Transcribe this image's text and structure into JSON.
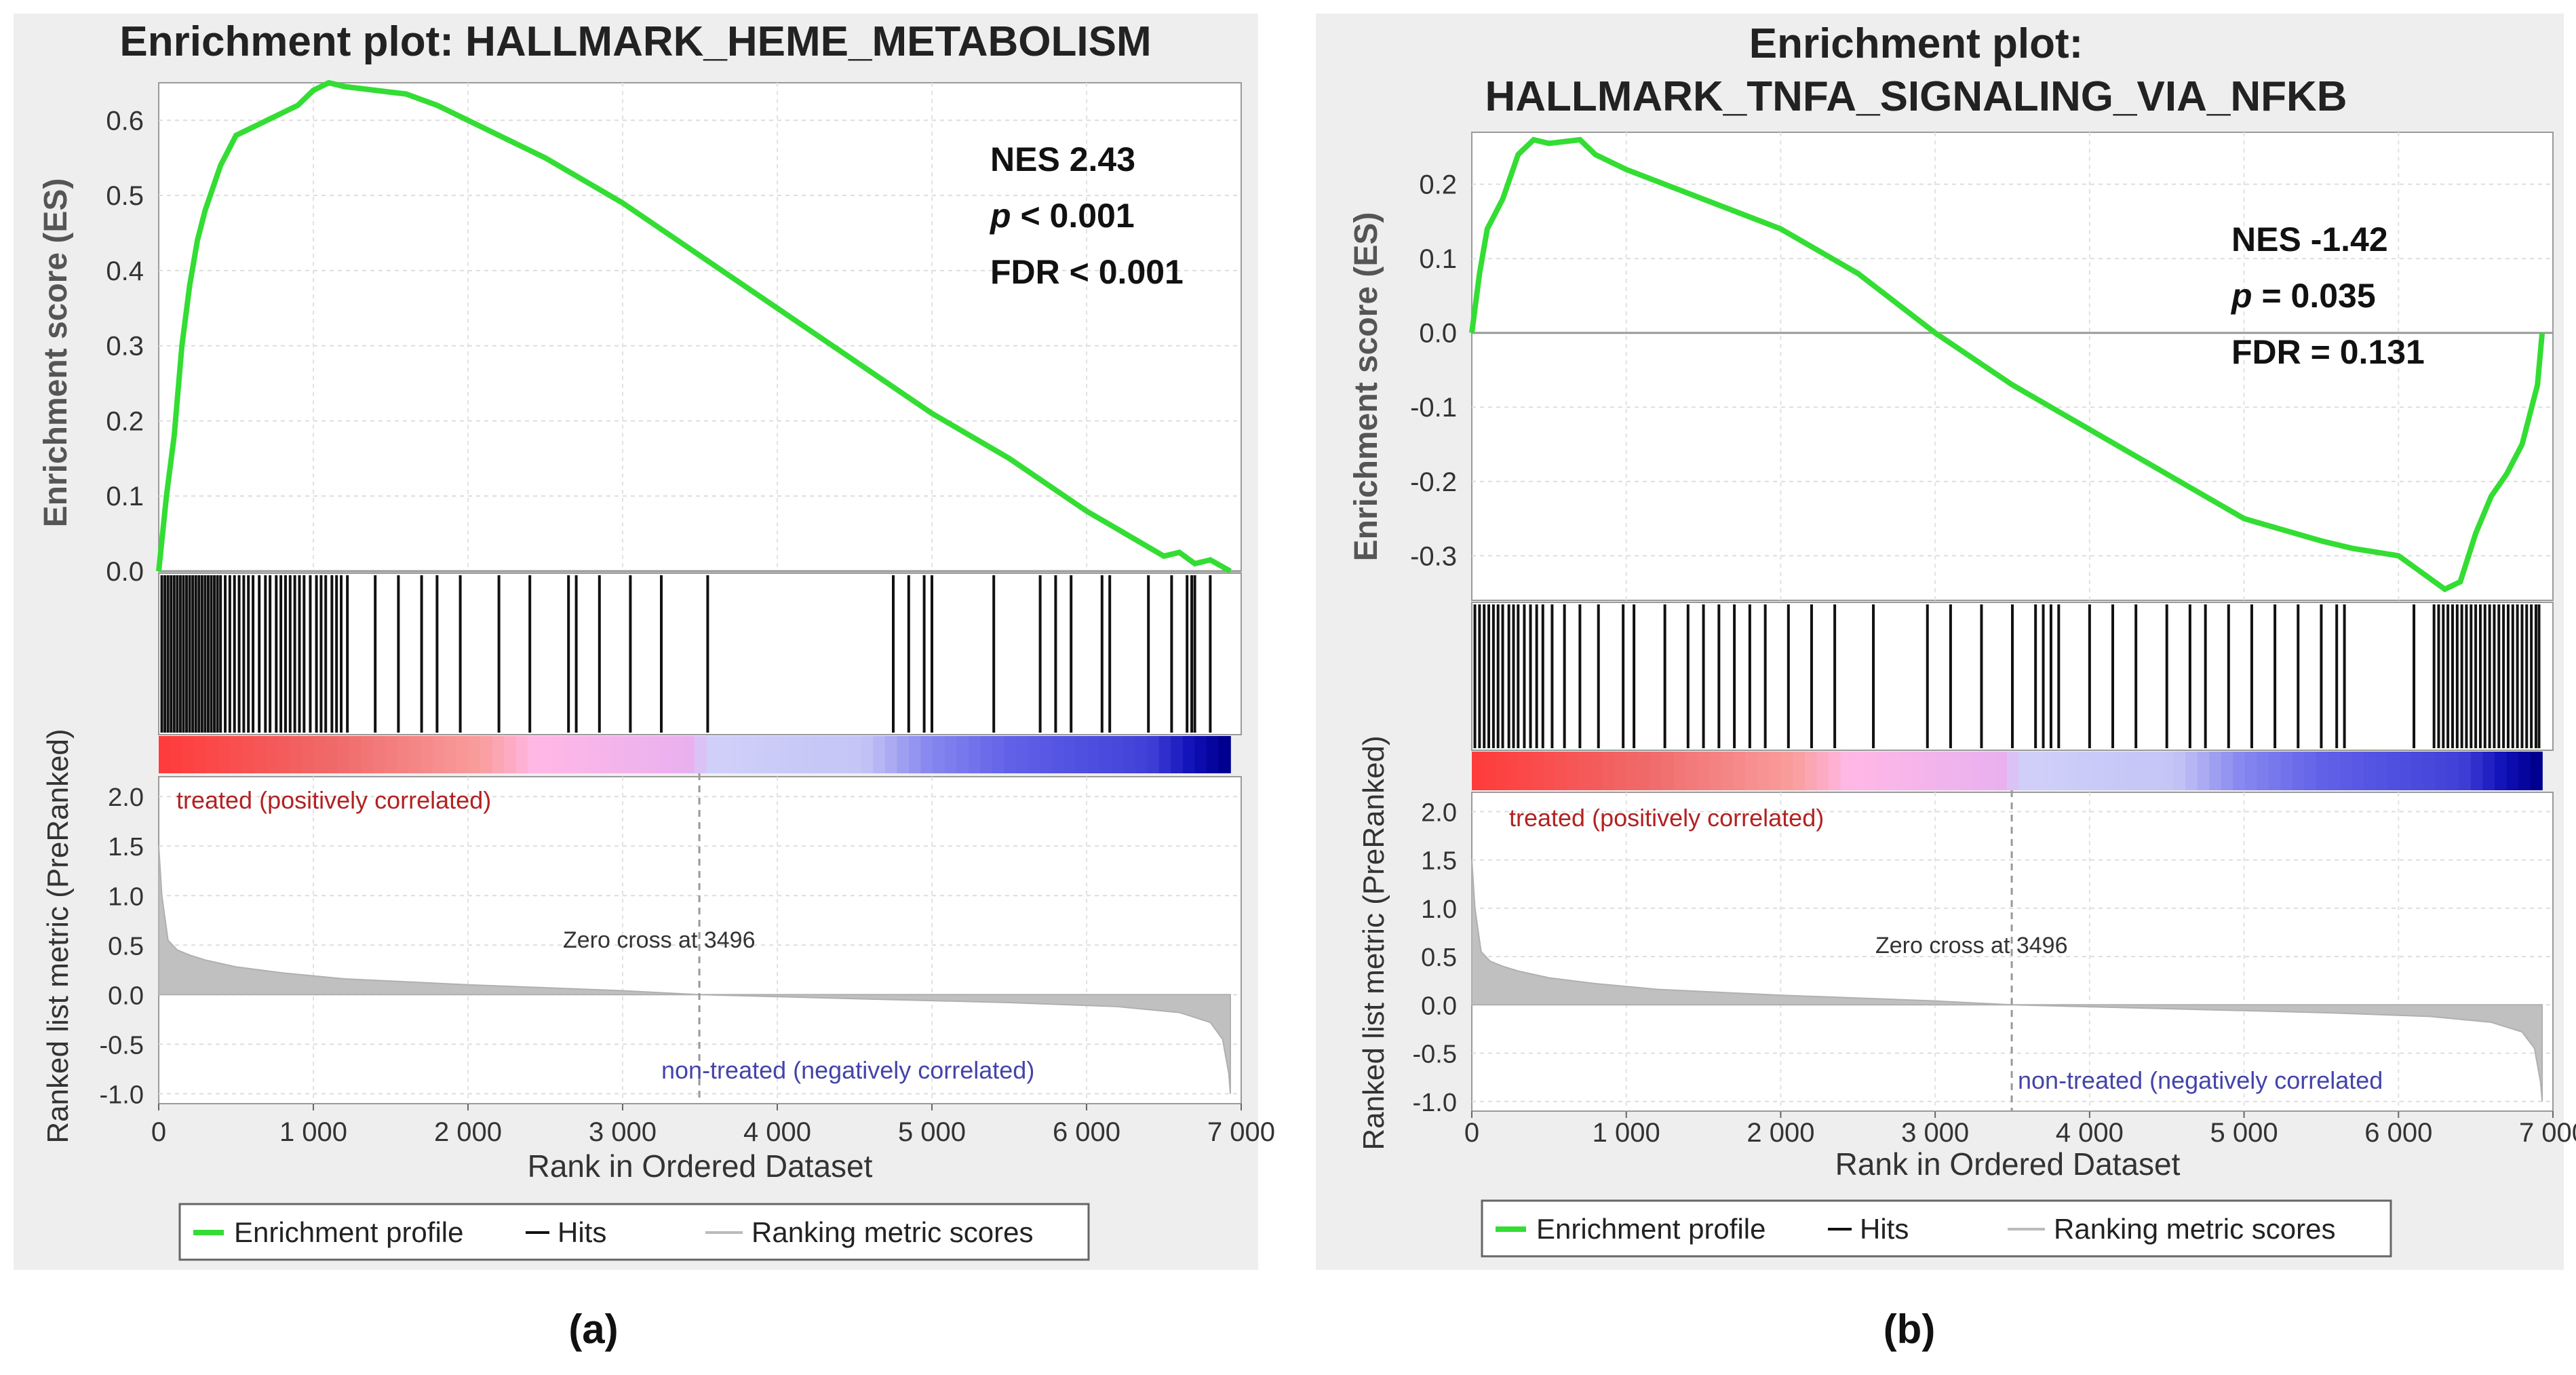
{
  "panels": [
    {
      "panel_label": "(a)",
      "title_lines": [
        "Enrichment plot: HALLMARK_HEME_METABOLISM"
      ],
      "stats": {
        "nes": "NES 2.43",
        "p_prefix": "p",
        "p_rest": " < 0.001",
        "fdr": "FDR < 0.001"
      },
      "es_ylabel": "Enrichment score (ES)",
      "metric_ylabel": "Ranked list metric (PreRanked)",
      "xlabel": "Rank in Ordered Dataset",
      "pos_label": "treated (positively correlated)",
      "neg_label": "non-treated (negatively correlated)",
      "zero_cross_label": "Zero cross at 3496",
      "legend": {
        "profile": "Enrichment profile",
        "hits": "Hits",
        "ranking": "Ranking metric scores"
      }
    },
    {
      "panel_label": "(b)",
      "title_lines": [
        "Enrichment plot:",
        "HALLMARK_TNFA_SIGNALING_VIA_NFKB"
      ],
      "stats": {
        "nes": "NES -1.42",
        "p_prefix": "p",
        "p_rest": " = 0.035",
        "fdr": "FDR = 0.131"
      },
      "es_ylabel": "Enrichment score (ES)",
      "metric_ylabel": "Ranked list metric (PreRanked)",
      "xlabel": "Rank in Ordered Dataset",
      "pos_label": "treated (positively correlated)",
      "neg_label": "non-treated (negatively correlated",
      "zero_cross_label": "Zero cross at 3496",
      "legend": {
        "profile": "Enrichment profile",
        "hits": "Hits",
        "ranking": "Ranking metric scores"
      }
    }
  ],
  "chart_data": [
    {
      "type": "line",
      "title": "Enrichment plot: HALLMARK_HEME_METABOLISM",
      "xlabel": "Rank in Ordered Dataset",
      "ylabel": "Enrichment score (ES)",
      "xlim": [
        0,
        7000
      ],
      "x_ticks": [
        0,
        1000,
        2000,
        3000,
        4000,
        5000,
        6000,
        7000
      ],
      "x_tick_labels": [
        "0",
        "1 000",
        "2 000",
        "3 000",
        "4 000",
        "5 000",
        "6 000",
        "7 000"
      ],
      "es_ylim": [
        0,
        0.65
      ],
      "es_ticks": [
        0.0,
        0.1,
        0.2,
        0.3,
        0.4,
        0.5,
        0.6
      ],
      "es_tick_labels": [
        "0.0",
        "0.1",
        "0.2",
        "0.3",
        "0.4",
        "0.5",
        "0.6"
      ],
      "es_curve": {
        "name": "Enrichment profile",
        "color": "#33dd33",
        "x": [
          0,
          50,
          100,
          150,
          200,
          250,
          300,
          400,
          500,
          600,
          700,
          800,
          900,
          1000,
          1100,
          1200,
          1400,
          1600,
          1800,
          2000,
          2500,
          3000,
          3500,
          4000,
          4500,
          5000,
          5500,
          6000,
          6500,
          6600,
          6700,
          6800,
          6930
        ],
        "y": [
          0.0,
          0.1,
          0.18,
          0.3,
          0.38,
          0.44,
          0.48,
          0.54,
          0.58,
          0.59,
          0.6,
          0.61,
          0.62,
          0.64,
          0.65,
          0.645,
          0.64,
          0.635,
          0.62,
          0.6,
          0.55,
          0.49,
          0.42,
          0.35,
          0.28,
          0.21,
          0.15,
          0.08,
          0.02,
          0.025,
          0.01,
          0.015,
          0.0
        ]
      },
      "hits": [
        20,
        40,
        60,
        80,
        100,
        120,
        140,
        160,
        180,
        200,
        220,
        240,
        260,
        280,
        300,
        320,
        340,
        360,
        380,
        400,
        430,
        460,
        490,
        520,
        550,
        580,
        610,
        650,
        690,
        720,
        760,
        790,
        820,
        850,
        880,
        910,
        940,
        980,
        1020,
        1050,
        1080,
        1120,
        1150,
        1180,
        1220,
        1400,
        1550,
        1700,
        1800,
        1950,
        2200,
        2400,
        2650,
        2700,
        2850,
        3050,
        3250,
        3550,
        4750,
        4850,
        4950,
        5000,
        5400,
        5700,
        5800,
        5900,
        6100,
        6150,
        6400,
        6550,
        6650,
        6680,
        6700,
        6800
      ],
      "metric_ylim": [
        -1.1,
        2.2
      ],
      "metric_ticks": [
        -1.0,
        -0.5,
        0.0,
        0.5,
        1.0,
        1.5,
        2.0
      ],
      "metric_tick_labels": [
        "-1.0",
        "-0.5",
        "0.0",
        "0.5",
        "1.0",
        "1.5",
        "2.0"
      ],
      "zero_cross": 3496,
      "metric_curve": {
        "name": "Ranking metric scores",
        "x": [
          0,
          20,
          60,
          120,
          200,
          300,
          500,
          800,
          1200,
          2000,
          3000,
          3496,
          4500,
          5500,
          6200,
          6600,
          6800,
          6880,
          6920,
          6930
        ],
        "y": [
          1.5,
          1.0,
          0.55,
          0.45,
          0.4,
          0.35,
          0.28,
          0.22,
          0.16,
          0.1,
          0.04,
          0.0,
          -0.04,
          -0.08,
          -0.12,
          -0.18,
          -0.28,
          -0.45,
          -0.8,
          -1.0
        ]
      },
      "dataset_max_rank": 6930,
      "legend": [
        "Enrichment profile",
        "Hits",
        "Ranking metric scores"
      ],
      "annotations": [
        "NES 2.43",
        "p < 0.001",
        "FDR < 0.001"
      ]
    },
    {
      "type": "line",
      "title": "Enrichment plot: HALLMARK_TNFA_SIGNALING_VIA_NFKB",
      "xlabel": "Rank in Ordered Dataset",
      "ylabel": "Enrichment score (ES)",
      "xlim": [
        0,
        7000
      ],
      "x_ticks": [
        0,
        1000,
        2000,
        3000,
        4000,
        5000,
        6000,
        7000
      ],
      "x_tick_labels": [
        "0",
        "1 000",
        "2 000",
        "3 000",
        "4 000",
        "5 000",
        "6 000",
        "7 000"
      ],
      "es_ylim": [
        -0.36,
        0.27
      ],
      "es_ticks": [
        0.2,
        0.1,
        0.0,
        -0.1,
        -0.2,
        -0.3
      ],
      "es_tick_labels": [
        "0.2",
        "0.1",
        "0.0",
        "-0.1",
        "-0.2",
        "-0.3"
      ],
      "es_curve": {
        "name": "Enrichment profile",
        "color": "#33dd33",
        "x": [
          0,
          50,
          100,
          200,
          300,
          400,
          500,
          700,
          800,
          1000,
          1500,
          2000,
          2500,
          3000,
          3500,
          4000,
          4500,
          5000,
          5500,
          5700,
          6000,
          6200,
          6300,
          6400,
          6500,
          6600,
          6700,
          6800,
          6900,
          6930
        ],
        "y": [
          0.0,
          0.08,
          0.14,
          0.18,
          0.24,
          0.26,
          0.255,
          0.26,
          0.24,
          0.22,
          0.18,
          0.14,
          0.08,
          0.0,
          -0.07,
          -0.13,
          -0.19,
          -0.25,
          -0.28,
          -0.29,
          -0.3,
          -0.33,
          -0.345,
          -0.335,
          -0.27,
          -0.22,
          -0.19,
          -0.15,
          -0.07,
          0.0
        ]
      },
      "hits": [
        20,
        50,
        80,
        110,
        140,
        170,
        200,
        240,
        270,
        300,
        340,
        380,
        420,
        460,
        520,
        600,
        700,
        820,
        980,
        1050,
        1250,
        1400,
        1500,
        1600,
        1700,
        1800,
        1900,
        2050,
        2200,
        2350,
        2600,
        2950,
        3100,
        3300,
        3500,
        3650,
        3700,
        3750,
        3800,
        4000,
        4150,
        4300,
        4500,
        4650,
        4750,
        4900,
        5050,
        5200,
        5350,
        5500,
        5600,
        5650,
        6100,
        6230,
        6260,
        6290,
        6320,
        6350,
        6380,
        6410,
        6440,
        6470,
        6500,
        6530,
        6560,
        6590,
        6620,
        6650,
        6680,
        6710,
        6740,
        6770,
        6800,
        6830,
        6860,
        6890,
        6910
      ],
      "metric_ylim": [
        -1.1,
        2.2
      ],
      "metric_ticks": [
        -1.0,
        -0.5,
        0.0,
        0.5,
        1.0,
        1.5,
        2.0
      ],
      "metric_tick_labels": [
        "-1.0",
        "-0.5",
        "0.0",
        "0.5",
        "1.0",
        "1.5",
        "2.0"
      ],
      "zero_cross": 3496,
      "metric_curve": {
        "name": "Ranking metric scores",
        "x": [
          0,
          20,
          60,
          120,
          200,
          300,
          500,
          800,
          1200,
          2000,
          3000,
          3496,
          4500,
          5500,
          6200,
          6600,
          6800,
          6880,
          6920,
          6930
        ],
        "y": [
          1.5,
          1.0,
          0.55,
          0.45,
          0.4,
          0.35,
          0.28,
          0.22,
          0.16,
          0.1,
          0.04,
          0.0,
          -0.04,
          -0.08,
          -0.12,
          -0.18,
          -0.28,
          -0.45,
          -0.8,
          -1.0
        ]
      },
      "dataset_max_rank": 6930,
      "legend": [
        "Enrichment profile",
        "Hits",
        "Ranking metric scores"
      ],
      "annotations": [
        "NES -1.42",
        "p = 0.035",
        "FDR = 0.131"
      ]
    }
  ]
}
